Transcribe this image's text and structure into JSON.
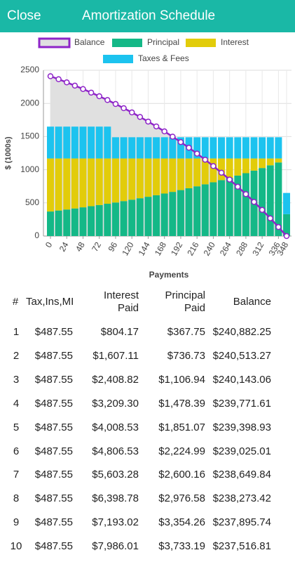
{
  "header": {
    "close": "Close",
    "title": "Amortization Schedule"
  },
  "chart_data": {
    "type": "bar",
    "stacked": true,
    "y_label": "$ (1000s)",
    "x_label": "Payments",
    "x": [
      0,
      12,
      24,
      36,
      48,
      60,
      72,
      84,
      96,
      108,
      120,
      132,
      144,
      156,
      168,
      180,
      192,
      204,
      216,
      228,
      240,
      252,
      264,
      276,
      288,
      300,
      312,
      324,
      336,
      348
    ],
    "xlim": [
      0,
      348
    ],
    "xticks": [
      0,
      24,
      48,
      72,
      96,
      120,
      144,
      168,
      192,
      216,
      240,
      264,
      288,
      312,
      336,
      348
    ],
    "ylim": [
      0,
      2500
    ],
    "yticks": [
      0,
      500,
      1000,
      1500,
      2000,
      2500
    ],
    "grid": true,
    "series": [
      {
        "name": "Balance",
        "type": "line",
        "color": "#8e24c8",
        "fill": "#e0e0e0",
        "values": [
          2410,
          2365,
          2317,
          2268,
          2217,
          2163,
          2108,
          2051,
          1991,
          1928,
          1864,
          1796,
          1726,
          1653,
          1578,
          1499,
          1417,
          1332,
          1243,
          1151,
          1055,
          955,
          852,
          744,
          632,
          515,
          394,
          268,
          136,
          0
        ]
      },
      {
        "name": "Principal",
        "type": "bar",
        "color": "#14b887",
        "values": [
          370,
          385,
          400,
          416,
          433,
          450,
          468,
          487,
          506,
          527,
          548,
          570,
          592,
          616,
          641,
          666,
          693,
          721,
          750,
          780,
          811,
          843,
          877,
          912,
          948,
          986,
          1026,
          1067,
          1110,
          330
        ]
      },
      {
        "name": "Interest",
        "type": "bar",
        "color": "#e2cc0a",
        "values": [
          800,
          785,
          770,
          754,
          737,
          720,
          702,
          683,
          664,
          643,
          622,
          600,
          578,
          554,
          529,
          504,
          477,
          449,
          420,
          390,
          359,
          327,
          293,
          258,
          222,
          184,
          144,
          103,
          60,
          0
        ]
      },
      {
        "name": "Taxes & Fees",
        "type": "bar",
        "color": "#1cc3ef",
        "values": [
          480,
          480,
          480,
          480,
          480,
          480,
          480,
          480,
          320,
          320,
          320,
          320,
          320,
          320,
          320,
          320,
          320,
          320,
          320,
          320,
          320,
          320,
          320,
          320,
          320,
          320,
          320,
          320,
          320,
          320
        ]
      }
    ]
  },
  "table": {
    "columns": [
      "#",
      "Tax,Ins,MI",
      "Interest Paid",
      "Principal Paid",
      "Balance"
    ],
    "rows": [
      [
        "1",
        "$487.55",
        "$804.17",
        "$367.75",
        "$240,882.25"
      ],
      [
        "2",
        "$487.55",
        "$1,607.11",
        "$736.73",
        "$240,513.27"
      ],
      [
        "3",
        "$487.55",
        "$2,408.82",
        "$1,106.94",
        "$240,143.06"
      ],
      [
        "4",
        "$487.55",
        "$3,209.30",
        "$1,478.39",
        "$239,771.61"
      ],
      [
        "5",
        "$487.55",
        "$4,008.53",
        "$1,851.07",
        "$239,398.93"
      ],
      [
        "6",
        "$487.55",
        "$4,806.53",
        "$2,224.99",
        "$239,025.01"
      ],
      [
        "7",
        "$487.55",
        "$5,603.28",
        "$2,600.16",
        "$238,649.84"
      ],
      [
        "8",
        "$487.55",
        "$6,398.78",
        "$2,976.58",
        "$238,273.42"
      ],
      [
        "9",
        "$487.55",
        "$7,193.02",
        "$3,354.26",
        "$237,895.74"
      ],
      [
        "10",
        "$487.55",
        "$7,986.01",
        "$3,733.19",
        "$237,516.81"
      ]
    ]
  }
}
